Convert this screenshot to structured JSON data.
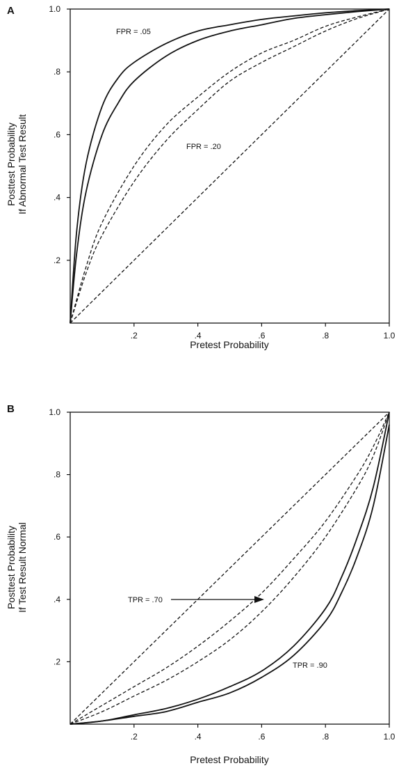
{
  "chart_data": [
    {
      "panel_label": "A",
      "type": "line",
      "xlabel": "Pretest Probability",
      "ylabel": [
        "Posttest Probability",
        "If Abnormal Test Result"
      ],
      "xlim": [
        0,
        1
      ],
      "ylim": [
        0,
        1
      ],
      "xticks": [
        ".2",
        ".4",
        ".6",
        ".8",
        "1.0"
      ],
      "yticks": [
        ".2",
        ".4",
        ".6",
        ".8",
        "1.0"
      ],
      "grid": false,
      "series": [
        {
          "style": "solid",
          "x": [
            0,
            0.02,
            0.05,
            0.1,
            0.15,
            0.2,
            0.3,
            0.4,
            0.5,
            0.6,
            0.7,
            0.8,
            0.9,
            1.0
          ],
          "y": [
            0,
            0.29,
            0.51,
            0.69,
            0.78,
            0.83,
            0.89,
            0.93,
            0.95,
            0.967,
            0.978,
            0.988,
            0.995,
            1.0
          ]
        },
        {
          "style": "solid",
          "x": [
            0,
            0.02,
            0.05,
            0.1,
            0.15,
            0.2,
            0.3,
            0.4,
            0.5,
            0.6,
            0.7,
            0.8,
            0.9,
            1.0
          ],
          "y": [
            0,
            0.22,
            0.42,
            0.6,
            0.7,
            0.77,
            0.85,
            0.9,
            0.93,
            0.95,
            0.97,
            0.982,
            0.992,
            1.0
          ]
        },
        {
          "style": "dashed",
          "x": [
            0,
            0.05,
            0.1,
            0.2,
            0.3,
            0.4,
            0.5,
            0.6,
            0.7,
            0.8,
            0.9,
            1.0
          ],
          "y": [
            0,
            0.18,
            0.32,
            0.5,
            0.63,
            0.72,
            0.8,
            0.86,
            0.9,
            0.945,
            0.975,
            1.0
          ]
        },
        {
          "style": "dashed",
          "x": [
            0,
            0.05,
            0.1,
            0.2,
            0.3,
            0.4,
            0.5,
            0.6,
            0.7,
            0.8,
            0.9,
            1.0
          ],
          "y": [
            0,
            0.16,
            0.28,
            0.45,
            0.58,
            0.68,
            0.77,
            0.83,
            0.88,
            0.93,
            0.97,
            1.0
          ]
        },
        {
          "style": "dashed",
          "x": [
            0,
            1
          ],
          "y": [
            0,
            1
          ]
        }
      ],
      "annotations": [
        "FPR = .05",
        "FPR = .20"
      ]
    },
    {
      "panel_label": "B",
      "type": "line",
      "xlabel": "Pretest Probability",
      "ylabel": [
        "Posttest Probability",
        "If Test Result Normal"
      ],
      "xlim": [
        0,
        1
      ],
      "ylim": [
        0,
        1
      ],
      "xticks": [
        ".2",
        ".4",
        ".6",
        ".8",
        "1.0"
      ],
      "yticks": [
        ".2",
        ".4",
        ".6",
        ".8",
        "1.0"
      ],
      "grid": false,
      "series": [
        {
          "style": "dashed",
          "x": [
            0,
            1
          ],
          "y": [
            0,
            1
          ]
        },
        {
          "style": "dashed",
          "x": [
            0,
            0.1,
            0.2,
            0.3,
            0.4,
            0.5,
            0.6,
            0.7,
            0.8,
            0.9,
            0.95,
            1.0
          ],
          "y": [
            0,
            0.06,
            0.12,
            0.18,
            0.25,
            0.33,
            0.42,
            0.53,
            0.65,
            0.8,
            0.89,
            1.0
          ]
        },
        {
          "style": "dashed",
          "x": [
            0,
            0.1,
            0.2,
            0.3,
            0.4,
            0.5,
            0.6,
            0.7,
            0.8,
            0.9,
            0.95,
            1.0
          ],
          "y": [
            0,
            0.04,
            0.09,
            0.14,
            0.2,
            0.27,
            0.36,
            0.47,
            0.6,
            0.76,
            0.86,
            1.0
          ]
        },
        {
          "style": "solid",
          "x": [
            0,
            0.1,
            0.2,
            0.3,
            0.4,
            0.5,
            0.6,
            0.7,
            0.8,
            0.85,
            0.9,
            0.95,
            1.0
          ],
          "y": [
            0,
            0.01,
            0.03,
            0.05,
            0.08,
            0.12,
            0.17,
            0.25,
            0.37,
            0.47,
            0.6,
            0.76,
            1.0
          ]
        },
        {
          "style": "solid",
          "x": [
            0,
            0.1,
            0.2,
            0.3,
            0.4,
            0.5,
            0.6,
            0.7,
            0.8,
            0.85,
            0.9,
            0.95,
            1.0
          ],
          "y": [
            0,
            0.01,
            0.025,
            0.04,
            0.07,
            0.1,
            0.15,
            0.22,
            0.33,
            0.42,
            0.54,
            0.7,
            0.96
          ]
        }
      ],
      "annotations": [
        "TPR = .70",
        "TPR = .90"
      ]
    }
  ]
}
